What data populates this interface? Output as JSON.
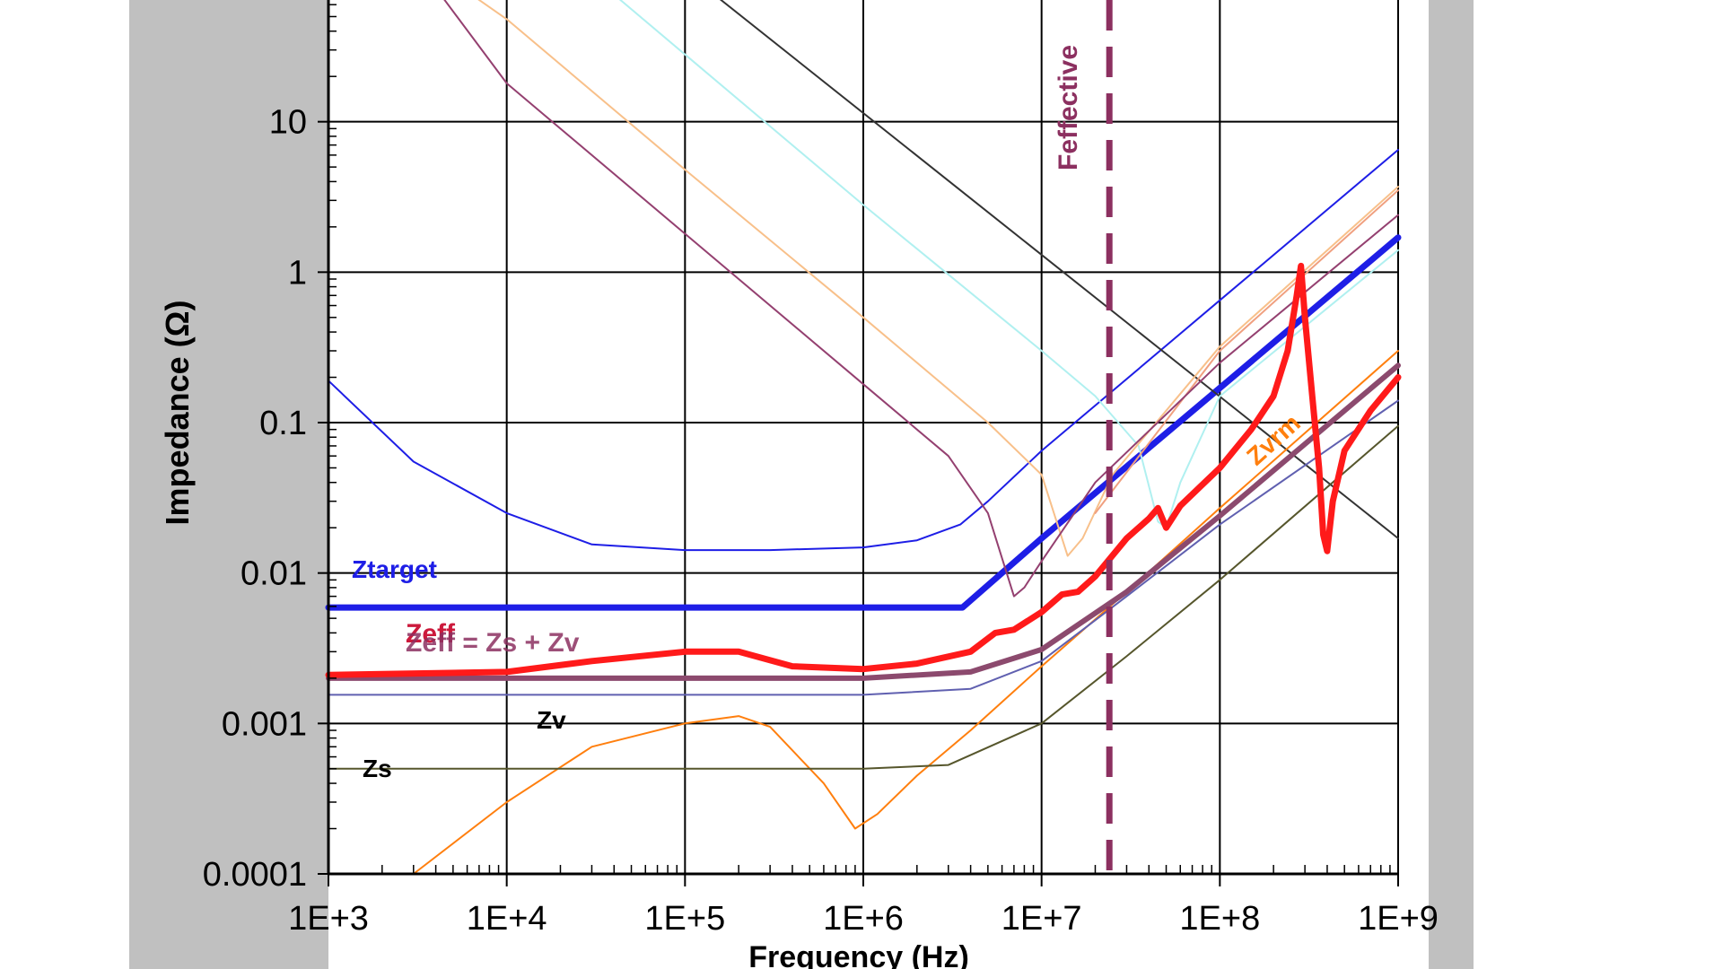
{
  "chart_data": {
    "type": "line",
    "title": "",
    "xlabel": "Frequency (Hz)",
    "ylabel": "Impedance (Ω)",
    "x_scale": "log",
    "y_scale": "log",
    "xlim": [
      1000,
      1000000000
    ],
    "ylim": [
      0.0001,
      100
    ],
    "grid": true,
    "x_ticks": [
      "1E+3",
      "1E+4",
      "1E+5",
      "1E+6",
      "1E+7",
      "1E+8",
      "1E+9"
    ],
    "y_ticks": [
      "0.0001",
      "0.001",
      "0.01",
      "0.1",
      "1",
      "10"
    ],
    "series": [
      {
        "color": "#1e1ee6",
        "width": 2,
        "points": [
          [
            1000,
            0.19
          ],
          [
            3000,
            0.055
          ],
          [
            10000,
            0.025
          ],
          [
            30000,
            0.0155
          ],
          [
            100000,
            0.0142
          ],
          [
            300000,
            0.0142
          ],
          [
            1000000,
            0.0148
          ],
          [
            2000000,
            0.0165
          ],
          [
            3500000,
            0.021
          ],
          [
            5000000,
            0.03
          ],
          [
            10000000,
            0.065
          ],
          [
            100000000,
            0.65
          ],
          [
            1000000000,
            6.5
          ]
        ]
      },
      {
        "name": "Ztarget",
        "color": "#1e1ee6",
        "width": 7,
        "points": [
          [
            1000,
            0.0059
          ],
          [
            3600000,
            0.0059
          ],
          [
            10000000,
            0.017
          ],
          [
            100000000,
            0.17
          ],
          [
            1000000000,
            1.7
          ]
        ]
      },
      {
        "color": "#333333",
        "width": 2,
        "points": [
          [
            100000,
            100
          ],
          [
            1000000000,
            0.017
          ]
        ]
      },
      {
        "color": "#b0f0f0",
        "width": 2,
        "points": [
          [
            20000,
            140
          ],
          [
            100000,
            28
          ],
          [
            1000000,
            2.8
          ],
          [
            10000000,
            0.3
          ],
          [
            20000000,
            0.15
          ],
          [
            35000000,
            0.07
          ],
          [
            45000000,
            0.022
          ],
          [
            50000000,
            0.02
          ],
          [
            60000000,
            0.04
          ],
          [
            100000000,
            0.15
          ],
          [
            1000000000,
            1.4
          ]
        ]
      },
      {
        "color": "#f8c08a",
        "width": 2,
        "points": [
          [
            3000,
            130
          ],
          [
            10000,
            48
          ],
          [
            100000,
            4.8
          ],
          [
            1000000,
            0.5
          ],
          [
            5000000,
            0.1
          ],
          [
            10000000,
            0.045
          ],
          [
            14000000,
            0.013
          ],
          [
            17000000,
            0.017
          ],
          [
            25000000,
            0.045
          ],
          [
            100000000,
            0.32
          ],
          [
            1000000000,
            3.7
          ]
        ]
      },
      {
        "color": "#f0a080",
        "width": 2,
        "points": [
          [
            20000000,
            0.025
          ],
          [
            100000000,
            0.3
          ],
          [
            1000000000,
            3.5
          ]
        ]
      },
      {
        "color": "#944070",
        "width": 2,
        "points": [
          [
            1000,
            700
          ],
          [
            10000,
            18
          ],
          [
            100000,
            1.8
          ],
          [
            1000000,
            0.18
          ],
          [
            3000000,
            0.06
          ],
          [
            5000000,
            0.025
          ],
          [
            7000000,
            0.007
          ],
          [
            8000000,
            0.008
          ],
          [
            10000000,
            0.012
          ],
          [
            20000000,
            0.04
          ],
          [
            100000000,
            0.25
          ],
          [
            1000000000,
            2.4
          ]
        ]
      },
      {
        "name": "Zvrm",
        "color": "#ff7f0e",
        "width": 2,
        "points": [
          [
            3000,
            0.0001
          ],
          [
            10000,
            0.0003
          ],
          [
            30000,
            0.0007
          ],
          [
            100000,
            0.001
          ],
          [
            200000,
            0.00112
          ],
          [
            300000,
            0.00095
          ],
          [
            600000,
            0.0004
          ],
          [
            900000,
            0.0002
          ],
          [
            1200000,
            0.00025
          ],
          [
            2000000,
            0.00045
          ],
          [
            4000000,
            0.0009
          ],
          [
            10000000,
            0.0024
          ],
          [
            30000000,
            0.0075
          ],
          [
            100000000,
            0.027
          ],
          [
            1000000000,
            0.3
          ]
        ]
      },
      {
        "name": "Zv",
        "color": "#6060b0",
        "width": 2,
        "points": [
          [
            1000,
            0.00155
          ],
          [
            1000000,
            0.00155
          ],
          [
            4000000,
            0.0017
          ],
          [
            10000000,
            0.0026
          ],
          [
            30000000,
            0.007
          ],
          [
            100000000,
            0.021
          ],
          [
            1000000000,
            0.14
          ]
        ]
      },
      {
        "name": "Zs",
        "color": "#56562c",
        "width": 2,
        "points": [
          [
            1000,
            0.0005
          ],
          [
            1000000,
            0.0005
          ],
          [
            3000000,
            0.00053
          ],
          [
            10000000,
            0.001
          ],
          [
            30000000,
            0.0028
          ],
          [
            100000000,
            0.009
          ],
          [
            1000000000,
            0.095
          ]
        ]
      },
      {
        "name": "Zeff = Zs + Zv",
        "color": "#8c4a6e",
        "width": 6,
        "points": [
          [
            1000,
            0.002
          ],
          [
            1000000,
            0.002
          ],
          [
            4000000,
            0.0022
          ],
          [
            10000000,
            0.0031
          ],
          [
            30000000,
            0.0075
          ],
          [
            100000000,
            0.024
          ],
          [
            1000000000,
            0.24
          ]
        ]
      },
      {
        "name": "Zeff",
        "color": "#ff1a1a",
        "width": 7,
        "points": [
          [
            1000,
            0.0021
          ],
          [
            10000,
            0.0022
          ],
          [
            30000,
            0.0026
          ],
          [
            100000,
            0.003
          ],
          [
            200000,
            0.003
          ],
          [
            400000,
            0.0024
          ],
          [
            1000000,
            0.0023
          ],
          [
            2000000,
            0.0025
          ],
          [
            4000000,
            0.003
          ],
          [
            5500000,
            0.004
          ],
          [
            7000000,
            0.0042
          ],
          [
            10000000,
            0.0055
          ],
          [
            13000000,
            0.0072
          ],
          [
            16000000,
            0.0075
          ],
          [
            20000000,
            0.0095
          ],
          [
            30000000,
            0.017
          ],
          [
            40000000,
            0.023
          ],
          [
            45000000,
            0.027
          ],
          [
            50000000,
            0.02
          ],
          [
            60000000,
            0.028
          ],
          [
            100000000,
            0.05
          ],
          [
            150000000,
            0.09
          ],
          [
            200000000,
            0.15
          ],
          [
            240000000,
            0.3
          ],
          [
            270000000,
            0.7
          ],
          [
            285000000,
            1.1
          ],
          [
            300000000,
            0.5
          ],
          [
            330000000,
            0.15
          ],
          [
            360000000,
            0.05
          ],
          [
            380000000,
            0.018
          ],
          [
            400000000,
            0.014
          ],
          [
            430000000,
            0.03
          ],
          [
            500000000,
            0.065
          ],
          [
            700000000,
            0.12
          ],
          [
            1000000000,
            0.2
          ]
        ]
      }
    ],
    "annotations": [
      {
        "text": "Ztarget",
        "color": "#1e1ee6"
      },
      {
        "text": "Zeff",
        "color": "#cc1a3c"
      },
      {
        "text": "Zeff = Zs + Zv",
        "color": "#8c3060"
      },
      {
        "text": "Zv",
        "color": "#000000"
      },
      {
        "text": "Zs",
        "color": "#000000"
      },
      {
        "text": "Zvrm",
        "color": "#ff7f0e"
      },
      {
        "text": "Feffective",
        "color": "#8c3060"
      }
    ],
    "vertical_markers": [
      {
        "x": 24000000,
        "style": "dashed",
        "color": "#8c3060",
        "label": "Feffective"
      }
    ]
  }
}
